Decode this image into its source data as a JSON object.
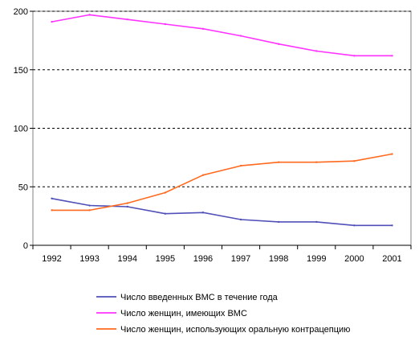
{
  "chart_data": {
    "type": "line",
    "title": "",
    "xlabel": "",
    "ylabel": "",
    "x": [
      "1992",
      "1993",
      "1994",
      "1995",
      "1996",
      "1997",
      "1998",
      "1999",
      "2000",
      "2001"
    ],
    "ylim": [
      0,
      200
    ],
    "yticks": [
      "0",
      "50",
      "100",
      "150",
      "200"
    ],
    "grid": "horizontal-dashed",
    "legend_position": "bottom",
    "series": [
      {
        "name": "Число введенных ВМС в течение года",
        "color": "#5050b8",
        "values": [
          40,
          34,
          33,
          27,
          28,
          22,
          20,
          20,
          17,
          17
        ]
      },
      {
        "name": "Число женщин, имеющих ВМС",
        "color": "#ff33ff",
        "values": [
          191,
          197,
          193,
          189,
          185,
          179,
          172,
          166,
          162,
          162
        ]
      },
      {
        "name": "Число женщин, использующих оральную контрацепцию",
        "color": "#ff6a1f",
        "values": [
          30,
          30,
          36,
          45,
          60,
          68,
          71,
          71,
          72,
          78
        ]
      }
    ]
  }
}
